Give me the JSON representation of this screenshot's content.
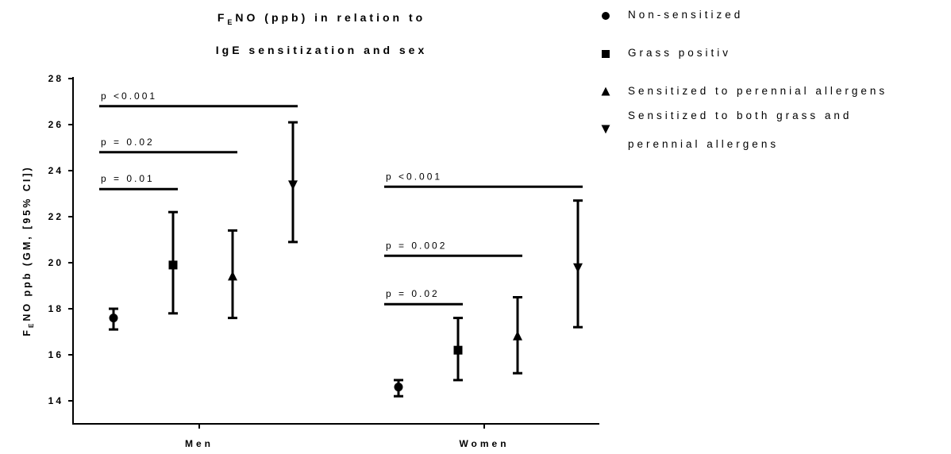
{
  "chart_data": {
    "type": "scatter",
    "title_lines": [
      "F_ENO (ppb) in relation to",
      "IgE sensitization and sex"
    ],
    "ylabel": "F_ENO ppb (GM, [95% CI])",
    "xlabel": "",
    "ylim": [
      13,
      28
    ],
    "yticks": [
      14,
      16,
      18,
      20,
      22,
      24,
      26,
      28
    ],
    "categories": [
      "Men",
      "Women"
    ],
    "legend_position": "top-right",
    "series": [
      {
        "name": "Non-sensitized",
        "marker": "circle",
        "values": [
          17.6,
          14.6
        ],
        "ci_low": [
          17.1,
          14.2
        ],
        "ci_high": [
          18.0,
          14.9
        ]
      },
      {
        "name": "Grass positiv",
        "marker": "square",
        "values": [
          19.9,
          16.2
        ],
        "ci_low": [
          17.8,
          14.9
        ],
        "ci_high": [
          22.2,
          17.6
        ]
      },
      {
        "name": "Sensitized to perennial allergens",
        "marker": "triangle-up",
        "values": [
          19.4,
          16.8
        ],
        "ci_low": [
          17.6,
          15.2
        ],
        "ci_high": [
          21.4,
          18.5
        ]
      },
      {
        "name": [
          "Sensitized to both grass and",
          "perennial allergens"
        ],
        "marker": "triangle-down",
        "values": [
          23.4,
          19.8
        ],
        "ci_low": [
          20.9,
          17.2
        ],
        "ci_high": [
          26.1,
          22.7
        ]
      }
    ],
    "annotations": [
      {
        "label": "p <0.001",
        "category": 0,
        "from_series": 0,
        "to_series": 3,
        "y": 26.8
      },
      {
        "label": "p = 0.02",
        "category": 0,
        "from_series": 0,
        "to_series": 2,
        "y": 24.8
      },
      {
        "label": "p = 0.01",
        "category": 0,
        "from_series": 0,
        "to_series": 1,
        "y": 23.2
      },
      {
        "label": "p <0.001",
        "category": 1,
        "from_series": 0,
        "to_series": 3,
        "y": 23.3
      },
      {
        "label": "p = 0.002",
        "category": 1,
        "from_series": 0,
        "to_series": 2,
        "y": 20.3
      },
      {
        "label": "p = 0.02",
        "category": 1,
        "from_series": 0,
        "to_series": 1,
        "y": 18.2
      }
    ]
  }
}
